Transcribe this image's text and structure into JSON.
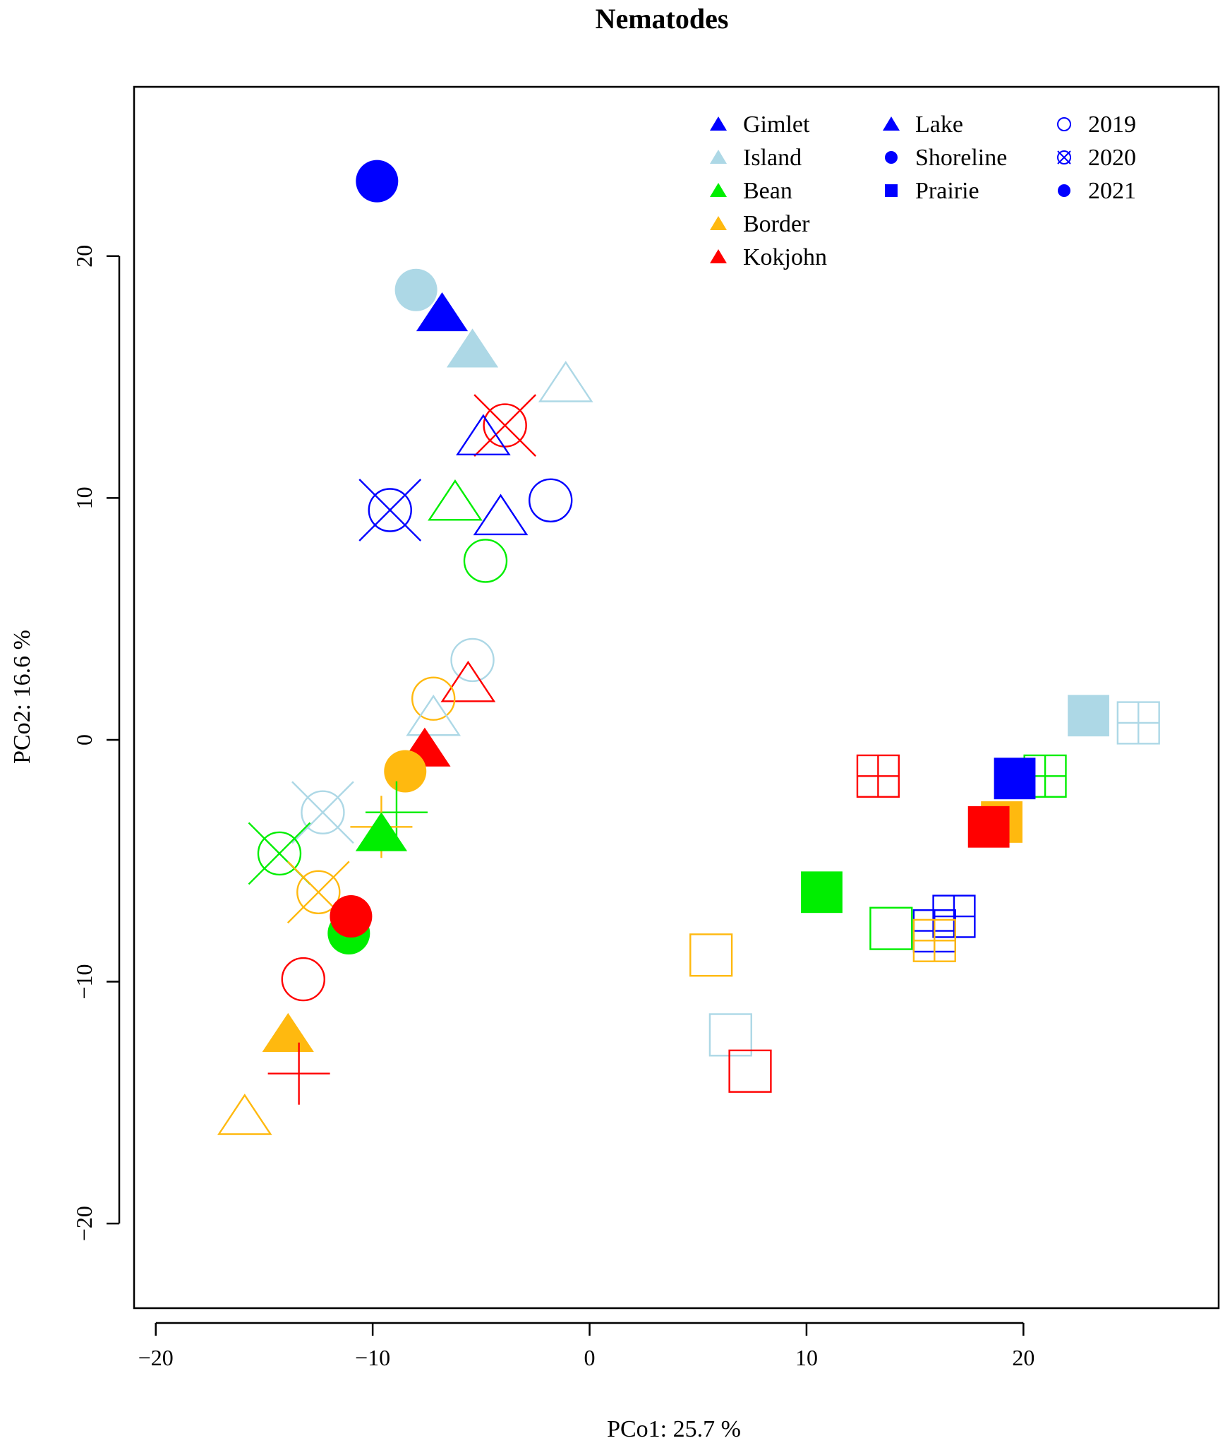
{
  "chart_data": {
    "type": "scatter",
    "title": "Nematodes",
    "xlabel": "PCo1:  25.7 %",
    "ylabel": "PCo2:  16.6 %",
    "xlim": [
      -21,
      29
    ],
    "ylim": [
      -23.5,
      27
    ],
    "xticks": [
      -20,
      -10,
      0,
      10,
      20
    ],
    "yticks": [
      -20,
      -10,
      0,
      10,
      20
    ],
    "xtick_labels": [
      "−20",
      "−10",
      "0",
      "10",
      "20"
    ],
    "ytick_labels": [
      "−20",
      "−10",
      "0",
      "10",
      "20"
    ],
    "site_colors": {
      "Gimlet": "#0000FF",
      "Island": "#ADD8E6",
      "Bean": "#00EE00",
      "Border": "#FFB90F",
      "Kokjohn": "#FF0000"
    },
    "legend": {
      "sites": [
        {
          "label": "Gimlet",
          "color": "#0000FF"
        },
        {
          "label": "Island",
          "color": "#ADD8E6"
        },
        {
          "label": "Bean",
          "color": "#00EE00"
        },
        {
          "label": "Border",
          "color": "#FFB90F"
        },
        {
          "label": "Kokjohn",
          "color": "#FF0000"
        }
      ],
      "habitats": [
        {
          "label": "Lake",
          "shape": "triangle"
        },
        {
          "label": "Shoreline",
          "shape": "circle"
        },
        {
          "label": "Prairie",
          "shape": "square"
        }
      ],
      "years": [
        {
          "label": "2019",
          "style": "open"
        },
        {
          "label": "2020",
          "style": "crossed"
        },
        {
          "label": "2021",
          "style": "filled"
        }
      ],
      "legend_color": "#0000FF",
      "position": "top-right"
    },
    "points": [
      {
        "site": "Gimlet",
        "habitat": "Shoreline",
        "year": "2021",
        "x": -9.8,
        "y": 23.1
      },
      {
        "site": "Island",
        "habitat": "Shoreline",
        "year": "2021",
        "x": -8.0,
        "y": 18.6
      },
      {
        "site": "Gimlet",
        "habitat": "Lake",
        "year": "2021",
        "x": -6.8,
        "y": 17.5
      },
      {
        "site": "Island",
        "habitat": "Lake",
        "year": "2021",
        "x": -5.4,
        "y": 16.0
      },
      {
        "site": "Island",
        "habitat": "Lake",
        "year": "2019",
        "x": -1.1,
        "y": 14.6
      },
      {
        "site": "Kokjohn",
        "habitat": "Shoreline",
        "year": "2020",
        "x": -3.9,
        "y": 13.0
      },
      {
        "site": "Gimlet",
        "habitat": "Lake",
        "year": "2019",
        "x": -4.9,
        "y": 12.4
      },
      {
        "site": "Gimlet",
        "habitat": "Shoreline",
        "year": "2020",
        "x": -9.2,
        "y": 9.5
      },
      {
        "site": "Bean",
        "habitat": "Lake",
        "year": "2019",
        "x": -6.2,
        "y": 9.7
      },
      {
        "site": "Gimlet",
        "habitat": "Shoreline",
        "year": "2019",
        "x": -1.8,
        "y": 9.9
      },
      {
        "site": "Gimlet",
        "habitat": "Lake",
        "year": "2019",
        "x": -4.1,
        "y": 9.1
      },
      {
        "site": "Bean",
        "habitat": "Shoreline",
        "year": "2019",
        "x": -4.8,
        "y": 7.4
      },
      {
        "site": "Island",
        "habitat": "Shoreline",
        "year": "2019",
        "x": -5.4,
        "y": 3.3
      },
      {
        "site": "Kokjohn",
        "habitat": "Lake",
        "year": "2019",
        "x": -5.6,
        "y": 2.2
      },
      {
        "site": "Border",
        "habitat": "Shoreline",
        "year": "2019",
        "x": -7.2,
        "y": 1.7
      },
      {
        "site": "Island",
        "habitat": "Lake",
        "year": "2019",
        "x": -7.2,
        "y": 0.8
      },
      {
        "site": "Kokjohn",
        "habitat": "Lake",
        "year": "2021",
        "x": -7.6,
        "y": -0.5
      },
      {
        "site": "Border",
        "habitat": "Shoreline",
        "year": "2021",
        "x": -8.5,
        "y": -1.3
      },
      {
        "site": "Island",
        "habitat": "Shoreline",
        "year": "2020",
        "x": -12.3,
        "y": -3.0
      },
      {
        "site": "Bean",
        "habitat": "Prairie",
        "year": "2020",
        "x": -8.9,
        "y": -3.0
      },
      {
        "site": "Border",
        "habitat": "Prairie",
        "year": "2020",
        "x": -9.6,
        "y": -3.6
      },
      {
        "site": "Bean",
        "habitat": "Lake",
        "year": "2021",
        "x": -9.6,
        "y": -4.0
      },
      {
        "site": "Bean",
        "habitat": "Shoreline",
        "year": "2020",
        "x": -14.3,
        "y": -4.7
      },
      {
        "site": "Border",
        "habitat": "Shoreline",
        "year": "2020",
        "x": -12.5,
        "y": -6.3
      },
      {
        "site": "Bean",
        "habitat": "Shoreline",
        "year": "2021",
        "x": -11.1,
        "y": -8.0
      },
      {
        "site": "Kokjohn",
        "habitat": "Shoreline",
        "year": "2021",
        "x": -11.0,
        "y": -7.3
      },
      {
        "site": "Kokjohn",
        "habitat": "Shoreline",
        "year": "2019",
        "x": -13.2,
        "y": -9.9
      },
      {
        "site": "Border",
        "habitat": "Lake",
        "year": "2021",
        "x": -13.9,
        "y": -12.3
      },
      {
        "site": "Kokjohn",
        "habitat": "Prairie",
        "year": "2020",
        "x": -13.4,
        "y": -13.8
      },
      {
        "site": "Border",
        "habitat": "Lake",
        "year": "2019",
        "x": -15.9,
        "y": -15.7
      },
      {
        "site": "Island",
        "habitat": "Prairie",
        "year": "2021",
        "x": 23.0,
        "y": 1.0
      },
      {
        "site": "Island",
        "habitat": "Prairie",
        "year": "2020",
        "x": 25.3,
        "y": 0.7
      },
      {
        "site": "Kokjohn",
        "habitat": "Prairie",
        "year": "2020",
        "x": 13.3,
        "y": -1.5
      },
      {
        "site": "Bean",
        "habitat": "Prairie",
        "year": "2020",
        "x": 21.0,
        "y": -1.5
      },
      {
        "site": "Gimlet",
        "habitat": "Prairie",
        "year": "2021",
        "x": 19.6,
        "y": -1.6
      },
      {
        "site": "Border",
        "habitat": "Prairie",
        "year": "2021",
        "x": 19.0,
        "y": -3.4
      },
      {
        "site": "Kokjohn",
        "habitat": "Prairie",
        "year": "2021",
        "x": 18.4,
        "y": -3.6
      },
      {
        "site": "Bean",
        "habitat": "Prairie",
        "year": "2021",
        "x": 10.7,
        "y": -6.3
      },
      {
        "site": "Bean",
        "habitat": "Prairie",
        "year": "2019",
        "x": 13.9,
        "y": -7.8
      },
      {
        "site": "Gimlet",
        "habitat": "Prairie",
        "year": "2020",
        "x": 15.9,
        "y": -7.9
      },
      {
        "site": "Gimlet",
        "habitat": "Prairie",
        "year": "2020",
        "x": 16.8,
        "y": -7.3
      },
      {
        "site": "Border",
        "habitat": "Prairie",
        "year": "2020",
        "x": 15.9,
        "y": -8.3
      },
      {
        "site": "Border",
        "habitat": "Prairie",
        "year": "2019",
        "x": 5.6,
        "y": -8.9
      },
      {
        "site": "Island",
        "habitat": "Prairie",
        "year": "2019",
        "x": 6.5,
        "y": -12.2
      },
      {
        "site": "Kokjohn",
        "habitat": "Prairie",
        "year": "2019",
        "x": 7.4,
        "y": -13.7
      }
    ]
  }
}
